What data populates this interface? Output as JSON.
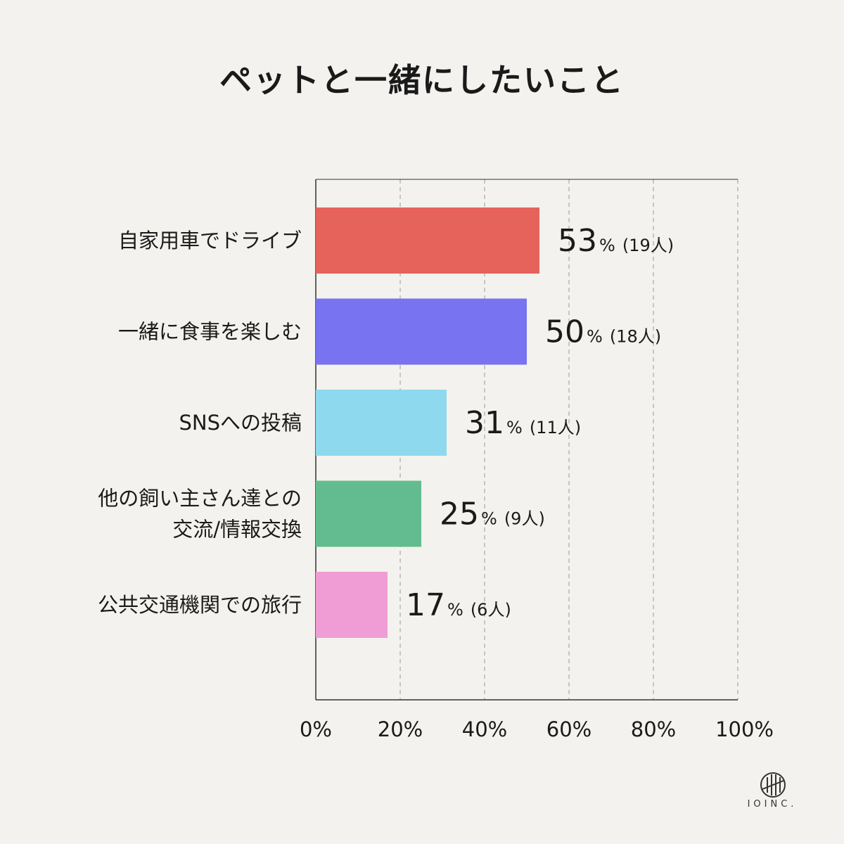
{
  "chart_data": {
    "type": "bar",
    "orientation": "horizontal",
    "title": "ペットと一緒にしたいこと",
    "categories": [
      [
        "自家用車でドライブ"
      ],
      [
        "一緒に食事を楽しむ"
      ],
      [
        "SNSへの投稿"
      ],
      [
        "他の飼い主さん達との",
        "交流/情報交換"
      ],
      [
        "公共交通機関での旅行"
      ]
    ],
    "values": [
      53,
      50,
      31,
      25,
      17
    ],
    "display_values": [
      "53",
      "50",
      "31",
      "25",
      "17"
    ],
    "counts": [
      "(19人)",
      "(18人)",
      "(11人)",
      "(9人)",
      "(6人)"
    ],
    "colors": [
      "#e5635a",
      "#7873f0",
      "#8fd9ee",
      "#63bc8f",
      "#f09dd5"
    ],
    "percent_symbol": "%",
    "xlim": [
      0,
      100
    ],
    "x_ticks": [
      "0%",
      "20%",
      "40%",
      "60%",
      "80%",
      "100%"
    ],
    "grid": "vertical dashed"
  },
  "logo": {
    "text": "IOINC."
  }
}
